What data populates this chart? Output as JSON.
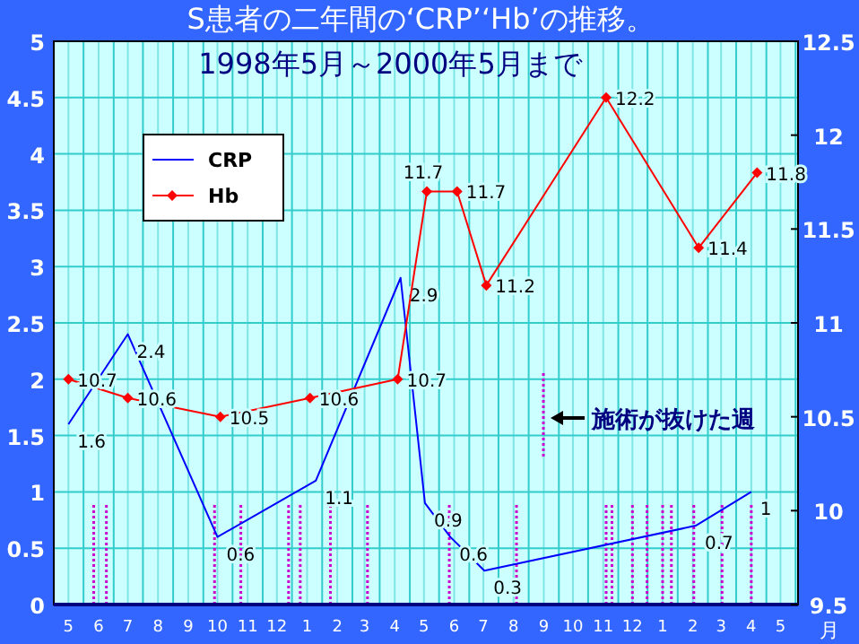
{
  "chart_data": {
    "type": "line",
    "title": "S患者の二年間の‘CRP’‘Hb’の推移。",
    "subtitle": "1998年5月～2000年5月まで",
    "xlabel": "月",
    "annotations": [
      "施術が抜けた週"
    ],
    "xlim": [
      "1998-04-16",
      "2000-05-19"
    ],
    "xticks": [
      {
        "value": "1998-05",
        "label": "5"
      },
      {
        "value": "1998-06",
        "label": "6"
      },
      {
        "value": "1998-07",
        "label": "7"
      },
      {
        "value": "1998-08",
        "label": "8"
      },
      {
        "value": "1998-09",
        "label": "9"
      },
      {
        "value": "1998-10",
        "label": "10"
      },
      {
        "value": "1998-11",
        "label": "11"
      },
      {
        "value": "1998-12",
        "label": "12"
      },
      {
        "value": "1999-01",
        "label": "1"
      },
      {
        "value": "1999-02",
        "label": "2"
      },
      {
        "value": "1999-03",
        "label": "3"
      },
      {
        "value": "1999-04",
        "label": "4"
      },
      {
        "value": "1999-05",
        "label": "5"
      },
      {
        "value": "1999-06",
        "label": "6"
      },
      {
        "value": "1999-07",
        "label": "7"
      },
      {
        "value": "1999-08",
        "label": "8"
      },
      {
        "value": "1999-09",
        "label": "9"
      },
      {
        "value": "1999-10",
        "label": "10"
      },
      {
        "value": "1999-11",
        "label": "11"
      },
      {
        "value": "1999-12",
        "label": "12"
      },
      {
        "value": "2000-01",
        "label": "1"
      },
      {
        "value": "2000-02",
        "label": "2"
      },
      {
        "value": "2000-03",
        "label": "3"
      },
      {
        "value": "2000-04",
        "label": "4"
      },
      {
        "value": "2000-05",
        "label": "5"
      }
    ],
    "ylim": [
      0,
      5
    ],
    "yticks": [
      0,
      0.5,
      1,
      1.5,
      2,
      2.5,
      3,
      3.5,
      4,
      4.5,
      5
    ],
    "y2lim": [
      9.5,
      12.5
    ],
    "y2ticks": [
      9.5,
      10,
      10.5,
      11,
      11.5,
      12,
      12.5
    ],
    "grid": true,
    "legend": "top left",
    "data_labels": true,
    "line_style": "solid",
    "series": [
      {
        "name": "CRP",
        "color": "#0000ff",
        "marker": "none",
        "x": [
          "1998-05-01",
          "1998-07-01",
          "1998-10-01",
          "1999-01-10",
          "1999-04-07",
          "1999-05-02",
          "1999-05-28",
          "1999-07-02",
          "2000-02-04",
          "2000-04-01"
        ],
        "values": [
          1.6,
          2.4,
          0.6,
          1.1,
          2.9,
          0.9,
          0.6,
          0.3,
          0.7,
          1
        ]
      },
      {
        "name": "Hb",
        "color": "#ff0000",
        "marker": "diamond",
        "axis": "y2",
        "x": [
          "1998-05-01",
          "1998-07-01",
          "1998-10-04",
          "1999-01-04",
          "1999-04-04",
          "1999-05-04",
          "1999-06-04",
          "1999-07-04",
          "1999-11-04",
          "2000-02-07",
          "2000-04-07"
        ],
        "values": [
          10.7,
          10.6,
          10.5,
          10.6,
          10.7,
          11.7,
          11.7,
          11.2,
          12.2,
          11.4,
          11.8
        ]
      }
    ],
    "ref_lines": [
      {
        "axis": "x",
        "value": "1998-05-27",
        "color": "#cc00cc",
        "line_style": "dotted"
      },
      {
        "axis": "x",
        "value": "1998-06-09",
        "color": "#cc00cc",
        "line_style": "dotted"
      },
      {
        "axis": "x",
        "value": "1998-09-28",
        "color": "#cc00cc",
        "line_style": "dotted"
      },
      {
        "axis": "x",
        "value": "1998-10-25",
        "color": "#cc00cc",
        "line_style": "dotted"
      },
      {
        "axis": "x",
        "value": "1998-12-13",
        "color": "#cc00cc",
        "line_style": "dotted"
      },
      {
        "axis": "x",
        "value": "1998-12-25",
        "color": "#cc00cc",
        "line_style": "dotted"
      },
      {
        "axis": "x",
        "value": "1999-01-25",
        "color": "#cc00cc",
        "line_style": "dotted"
      },
      {
        "axis": "x",
        "value": "1999-03-04",
        "color": "#cc00cc",
        "line_style": "dotted"
      },
      {
        "axis": "x",
        "value": "1999-05-27",
        "color": "#cc00cc",
        "line_style": "dotted"
      },
      {
        "axis": "x",
        "value": "1999-08-04",
        "color": "#cc00cc",
        "line_style": "dotted"
      },
      {
        "axis": "x",
        "value": "1999-11-04",
        "color": "#cc00cc",
        "line_style": "dotted"
      },
      {
        "axis": "x",
        "value": "1999-11-10",
        "color": "#cc00cc",
        "line_style": "dotted"
      },
      {
        "axis": "x",
        "value": "1999-12-01",
        "color": "#cc00cc",
        "line_style": "dotted"
      },
      {
        "axis": "x",
        "value": "1999-12-16",
        "color": "#cc00cc",
        "line_style": "dotted"
      },
      {
        "axis": "x",
        "value": "2000-01-01",
        "color": "#cc00cc",
        "line_style": "dotted"
      },
      {
        "axis": "x",
        "value": "2000-01-10",
        "color": "#cc00cc",
        "line_style": "dotted"
      },
      {
        "axis": "x",
        "value": "2000-02-02",
        "color": "#cc00cc",
        "line_style": "dotted"
      },
      {
        "axis": "x",
        "value": "2000-03-02",
        "color": "#cc00cc",
        "line_style": "dotted"
      },
      {
        "axis": "x",
        "value": "2000-04-01",
        "color": "#cc00cc",
        "line_style": "dotted"
      }
    ]
  }
}
